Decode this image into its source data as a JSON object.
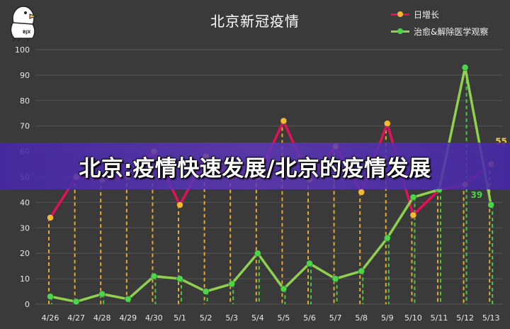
{
  "chart_data": {
    "type": "line",
    "title": "北京新冠疫情",
    "categories": [
      "4/26",
      "4/27",
      "4/28",
      "4/29",
      "4/30",
      "5/1",
      "5/2",
      "5/3",
      "5/4",
      "5/5",
      "5/6",
      "5/7",
      "5/8",
      "5/9",
      "5/10",
      "5/11",
      "5/12",
      "5/13"
    ],
    "series": [
      {
        "name": "日增长",
        "color": "#e0105c",
        "marker_color": "#f5b82e",
        "values": [
          34,
          50,
          49,
          50,
          60,
          39,
          58,
          50,
          50,
          72,
          49,
          62,
          44,
          71,
          35,
          45,
          47,
          55
        ]
      },
      {
        "name": "治愈&解除医学观察",
        "color": "#8fd14f",
        "marker_color": "#4ad64a",
        "values": [
          3,
          1,
          4,
          2,
          11,
          10,
          5,
          8,
          20,
          6,
          16,
          10,
          13,
          26,
          42,
          45,
          93,
          39
        ]
      }
    ],
    "ylim": [
      0,
      100
    ],
    "yticks": [
      0,
      10,
      20,
      30,
      40,
      50,
      60,
      70,
      80,
      90,
      100
    ],
    "grid": true,
    "legend": "top-right",
    "annotations": [
      {
        "series": "日增长",
        "category": "5/13",
        "text": "55"
      },
      {
        "series": "治愈&解除医学观察",
        "category": "5/13",
        "text": "39"
      }
    ]
  },
  "banner": {
    "text": "北京:疫情快速发展/北京的疫情发展"
  },
  "logo": {
    "text": "BJX"
  }
}
